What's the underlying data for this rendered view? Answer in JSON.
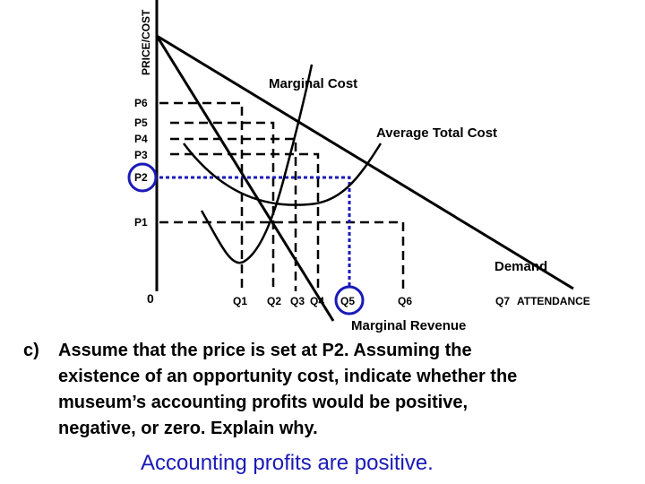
{
  "axes": {
    "y_label": "PRICE/COST",
    "origin": "0"
  },
  "price_labels": [
    "P6",
    "P5",
    "P4",
    "P3",
    "P2",
    "P1"
  ],
  "quantity_labels": [
    "Q1",
    "Q2",
    "Q3",
    "Q4",
    "Q5",
    "Q6",
    "Q7",
    "ATTENDANCE"
  ],
  "curve_labels": {
    "marginal_cost": "Marginal Cost",
    "average_total_cost": "Average Total Cost",
    "demand": "Demand",
    "marginal_revenue": "Marginal Revenue"
  },
  "question": {
    "label": "c)",
    "lines": [
      "Assume that the price is set at P2.  Assuming the",
      "existence of an opportunity cost, indicate whether the",
      "museum’s accounting profits would be positive,",
      "negative, or zero.  Explain why."
    ]
  },
  "answer": "Accounting profits are positive."
}
